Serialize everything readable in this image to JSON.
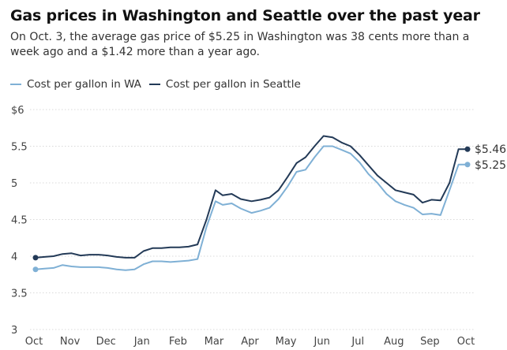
{
  "chart_data": {
    "type": "line",
    "title": "Gas prices in Washington and Seattle over the past year",
    "subtitle": "On Oct. 3, the average gas price of $5.25 in Washington was 38 cents more than a week ago and a $1.42 more than a year ago.",
    "xlabel": "",
    "ylabel": "",
    "ylim": [
      3,
      6
    ],
    "ytick_values": [
      3,
      3.5,
      4,
      4.5,
      5,
      5.5,
      6
    ],
    "ytick_labels": [
      "3",
      "3.5",
      "4",
      "4.5",
      "5",
      "5.5",
      "$6"
    ],
    "xtick_labels": [
      "Oct",
      "Nov",
      "Dec",
      "Jan",
      "Feb",
      "Mar",
      "Apr",
      "May",
      "Jun",
      "Jul",
      "Aug",
      "Sep",
      "Oct"
    ],
    "x_range": [
      0,
      12
    ],
    "grid": true,
    "legend_position": "top-left",
    "x": [
      0,
      0.25,
      0.5,
      0.75,
      1,
      1.25,
      1.5,
      1.75,
      2,
      2.25,
      2.5,
      2.75,
      3,
      3.25,
      3.5,
      3.75,
      4,
      4.25,
      4.5,
      4.75,
      5,
      5.2,
      5.45,
      5.7,
      6,
      6.25,
      6.5,
      6.75,
      7,
      7.25,
      7.5,
      7.75,
      8,
      8.25,
      8.5,
      8.75,
      9,
      9.25,
      9.5,
      9.75,
      10,
      10.25,
      10.5,
      10.75,
      11,
      11.25,
      11.5,
      11.75,
      12
    ],
    "series": [
      {
        "name": "Cost per gallon in WA",
        "color": "#7fb0d5",
        "end_label": "$5.25",
        "values": [
          3.82,
          3.83,
          3.84,
          3.88,
          3.86,
          3.85,
          3.85,
          3.85,
          3.84,
          3.82,
          3.81,
          3.82,
          3.89,
          3.93,
          3.93,
          3.92,
          3.93,
          3.94,
          3.96,
          4.4,
          4.75,
          4.7,
          4.72,
          4.65,
          4.59,
          4.62,
          4.66,
          4.78,
          4.95,
          5.15,
          5.18,
          5.35,
          5.5,
          5.5,
          5.45,
          5.4,
          5.28,
          5.12,
          5.0,
          4.85,
          4.75,
          4.7,
          4.66,
          4.57,
          4.58,
          4.56,
          4.9,
          5.25,
          5.25
        ]
      },
      {
        "name": "Cost per gallon in Seattle",
        "color": "#233a57",
        "end_label": "$5.46",
        "values": [
          3.98,
          3.99,
          4.0,
          4.03,
          4.04,
          4.01,
          4.02,
          4.02,
          4.01,
          3.99,
          3.98,
          3.98,
          4.07,
          4.11,
          4.11,
          4.12,
          4.12,
          4.13,
          4.16,
          4.5,
          4.9,
          4.83,
          4.85,
          4.78,
          4.75,
          4.77,
          4.8,
          4.9,
          5.08,
          5.27,
          5.35,
          5.5,
          5.64,
          5.62,
          5.55,
          5.5,
          5.38,
          5.24,
          5.1,
          5.0,
          4.9,
          4.87,
          4.84,
          4.73,
          4.77,
          4.76,
          5.0,
          5.46,
          5.46
        ]
      }
    ]
  }
}
